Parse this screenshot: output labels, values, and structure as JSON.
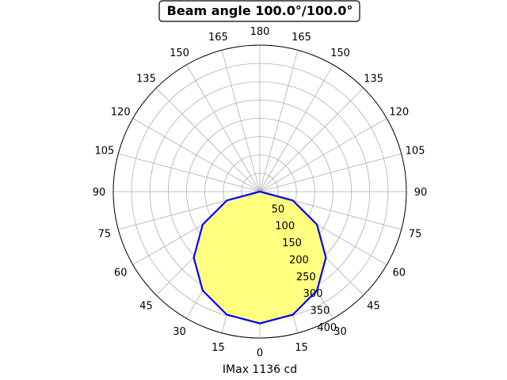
{
  "chart_data": {
    "type": "polar-area",
    "title": "Beam angle 100.0°/100.0°",
    "xlabel": "IMax 1136 cd",
    "angle_ticks": [
      {
        "deg": 0,
        "label": "0"
      },
      {
        "deg": 15,
        "label": "15"
      },
      {
        "deg": 30,
        "label": "30"
      },
      {
        "deg": 45,
        "label": "45"
      },
      {
        "deg": 60,
        "label": "60"
      },
      {
        "deg": 75,
        "label": "75"
      },
      {
        "deg": 90,
        "label": "90"
      },
      {
        "deg": 105,
        "label": "105"
      },
      {
        "deg": 120,
        "label": "120"
      },
      {
        "deg": 135,
        "label": "135"
      },
      {
        "deg": 150,
        "label": "150"
      },
      {
        "deg": 165,
        "label": "165"
      },
      {
        "deg": 180,
        "label": "180"
      },
      {
        "deg": -165,
        "label": "165"
      },
      {
        "deg": -150,
        "label": "150"
      },
      {
        "deg": -135,
        "label": "135"
      },
      {
        "deg": -120,
        "label": "120"
      },
      {
        "deg": -105,
        "label": "105"
      },
      {
        "deg": -90,
        "label": "90"
      },
      {
        "deg": -75,
        "label": "75"
      },
      {
        "deg": -60,
        "label": "60"
      },
      {
        "deg": -45,
        "label": "45"
      },
      {
        "deg": -30,
        "label": "30"
      },
      {
        "deg": -15,
        "label": "15"
      }
    ],
    "radial_ticks": [
      50,
      100,
      150,
      200,
      250,
      300,
      350,
      400
    ],
    "rlim": [
      0,
      400
    ],
    "grid": true,
    "series": [
      {
        "theta": [
          -90,
          -75,
          -60,
          -45,
          -30,
          -15,
          0,
          15,
          30,
          45,
          60,
          75,
          90
        ],
        "r": [
          0,
          93,
          180,
          255,
          312,
          348,
          360,
          348,
          312,
          255,
          180,
          93,
          0
        ],
        "line_color": "#0000ff",
        "fill_color": "#ffff80"
      }
    ]
  }
}
